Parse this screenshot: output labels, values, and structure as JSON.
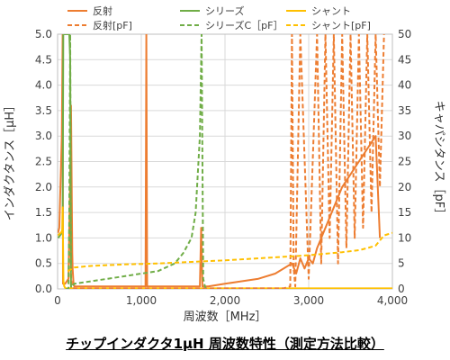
{
  "caption": "チップインダクタ1μH 周波数特性（測定方法比較）",
  "chart_data": {
    "type": "line",
    "xlabel": "周波数［MHz］",
    "ylabel": "インダクタンス［μH］",
    "y2label": "キャパシタンス［pF］",
    "xlim": [
      0,
      4000
    ],
    "ylim": [
      0,
      5.0
    ],
    "y2lim": [
      0,
      50
    ],
    "x_ticks": [
      "0",
      "1,000",
      "2,000",
      "3,000",
      "4,000"
    ],
    "y_ticks": [
      "0.0",
      "0.5",
      "1.0",
      "1.5",
      "2.0",
      "2.5",
      "3.0",
      "3.5",
      "4.0",
      "4.5",
      "5.0"
    ],
    "y2_ticks": [
      "0",
      "5",
      "10",
      "15",
      "20",
      "25",
      "30",
      "35",
      "40",
      "45",
      "50"
    ],
    "grid": true,
    "legend_position": "top",
    "series": [
      {
        "name": "反射",
        "axis": "left",
        "color": "#ED7D31",
        "style": "solid",
        "x": [
          5,
          20,
          50,
          60,
          65,
          70,
          75,
          90,
          130,
          150,
          160,
          175,
          180,
          190,
          200,
          300,
          500,
          700,
          900,
          1000,
          1050,
          1060,
          1070,
          1085,
          1100,
          1200,
          1400,
          1600,
          1700,
          1715,
          1730,
          1745,
          1760,
          1800,
          2000,
          2200,
          2400,
          2600,
          2700,
          2800,
          2850,
          2900,
          2950,
          3000,
          3050,
          3100,
          3200,
          3400,
          3600,
          3800,
          3850
        ],
        "y": [
          1.1,
          1.2,
          3.0,
          5.0,
          0.1,
          0.1,
          0.1,
          0.1,
          0.2,
          2.2,
          3.6,
          0.7,
          0.4,
          0.1,
          0.05,
          0.05,
          0.05,
          0.05,
          0.05,
          0.05,
          0.05,
          5.0,
          0.05,
          0.05,
          0.05,
          0.05,
          0.05,
          0.05,
          0.05,
          1.2,
          0.05,
          0.05,
          0.05,
          0.05,
          0.1,
          0.15,
          0.2,
          0.3,
          0.4,
          0.5,
          0.3,
          0.6,
          0.4,
          0.6,
          0.5,
          0.8,
          1.2,
          2.0,
          2.5,
          3.0,
          1.0
        ]
      },
      {
        "name": "シリーズ",
        "axis": "left",
        "color": "#70AD47",
        "style": "solid",
        "x": [
          5,
          30,
          50,
          60,
          68,
          75,
          100,
          120,
          140,
          150,
          160,
          165
        ],
        "y": [
          1.0,
          1.05,
          1.1,
          1.15,
          5.0,
          5.0,
          5.0,
          5.0,
          5.0,
          4.5,
          0.05,
          0.0
        ],
        "note": "x-values past 165 not shown (line leaves plot)"
      },
      {
        "name": "シャント",
        "axis": "left",
        "color": "#FFC000",
        "style": "solid",
        "x": [
          5,
          20,
          40,
          55,
          60,
          70,
          80,
          90,
          100,
          200,
          400,
          800,
          1000,
          1200,
          1400,
          1600,
          1800,
          2000,
          2200,
          2400,
          2600,
          2800,
          3000,
          3200,
          3400,
          3500,
          3600,
          3700,
          3800,
          3900,
          3950,
          4000
        ],
        "y": [
          1.05,
          1.08,
          1.1,
          1.15,
          1.6,
          0.15,
          0.05,
          0.02,
          0.01,
          0.01,
          0.01,
          0.01,
          0.01,
          0.01,
          0.01,
          0.01,
          0.01,
          0.01,
          0.01,
          0.01,
          0.01,
          0.01,
          0.01,
          0.01,
          0.01,
          0.01,
          0.01,
          0.01,
          0.01,
          0.01,
          0.01,
          0.01
        ]
      },
      {
        "name": "反射[pF]",
        "axis": "right",
        "color": "#ED7D31",
        "style": "dashed",
        "x": [
          150,
          160,
          170,
          180,
          190,
          200,
          2700,
          2780,
          2800,
          2820,
          2840,
          2900,
          3000,
          3100,
          3150,
          3200,
          3250,
          3300,
          3350,
          3400,
          3450,
          3500,
          3550,
          3600,
          3650,
          3700,
          3750,
          3800,
          3850,
          3900
        ],
        "y": [
          20,
          2,
          1,
          0.5,
          0.2,
          0.1,
          0.1,
          0.5,
          50,
          4,
          0.5,
          50,
          2,
          50,
          5,
          50,
          10,
          50,
          5,
          50,
          8,
          50,
          10,
          50,
          12,
          50,
          15,
          50,
          20,
          50
        ]
      },
      {
        "name": "シリーズC［pF］",
        "axis": "right",
        "color": "#70AD47",
        "style": "dashed",
        "x": [
          100,
          130,
          140,
          150,
          160,
          200,
          400,
          600,
          800,
          1000,
          1200,
          1400,
          1500,
          1600,
          1650,
          1700,
          1720,
          1740,
          1760,
          1770
        ],
        "y": [
          0,
          0,
          15,
          50,
          0.5,
          1.0,
          1.5,
          2.0,
          2.5,
          3.0,
          3.5,
          5,
          7,
          10,
          15,
          30,
          50,
          2,
          0.5,
          0.2
        ]
      },
      {
        "name": "シャント[pF]",
        "axis": "right",
        "color": "#FFC000",
        "style": "dashed",
        "x": [
          120,
          200,
          400,
          800,
          1200,
          1600,
          2000,
          2400,
          2800,
          3000,
          3200,
          3400,
          3600,
          3700,
          3800,
          3900,
          4000
        ],
        "y": [
          3.5,
          4.2,
          4.5,
          4.8,
          5.0,
          5.3,
          5.6,
          6.0,
          6.4,
          6.6,
          6.9,
          7.2,
          7.6,
          8.0,
          8.5,
          10.5,
          11.0
        ]
      }
    ]
  }
}
